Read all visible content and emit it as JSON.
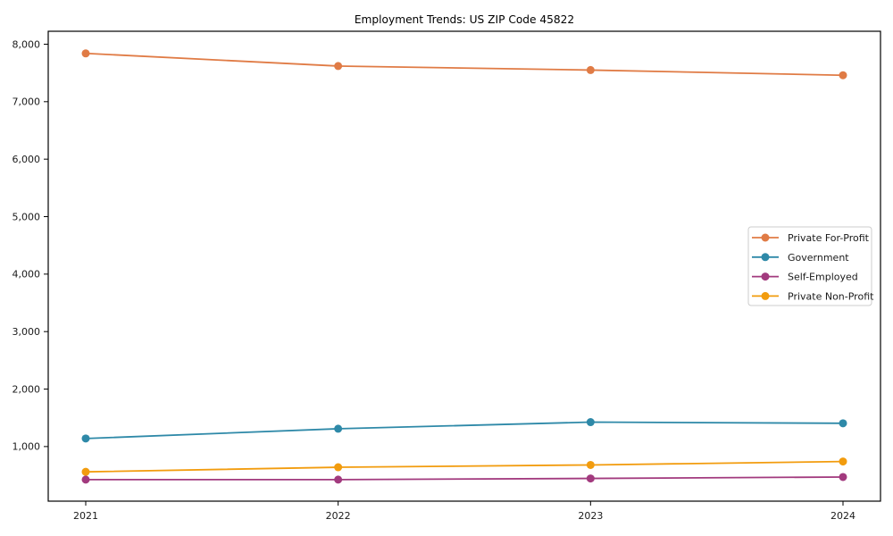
{
  "figure": {
    "background_color": "#ffffff",
    "spine_color": "#000000",
    "legend_border_color": "#cccccc"
  },
  "chart_data": {
    "type": "line",
    "title": "Employment Trends: US ZIP Code 45822",
    "xlabel": "",
    "ylabel": "",
    "grid": false,
    "legend_position": "center right",
    "x": [
      2021,
      2022,
      2023,
      2024
    ],
    "x_tick_labels": [
      "2021",
      "2022",
      "2023",
      "2024"
    ],
    "y_ticks": [
      1000,
      2000,
      3000,
      4000,
      5000,
      6000,
      7000,
      8000
    ],
    "y_tick_labels": [
      "1,000",
      "2,000",
      "3,000",
      "4,000",
      "5,000",
      "6,000",
      "7,000",
      "8,000"
    ],
    "ylim": [
      50,
      8225
    ],
    "marker": "circle",
    "series": [
      {
        "name": "Private For-Profit",
        "color": "#E07B45",
        "values": [
          7840,
          7620,
          7550,
          7460
        ]
      },
      {
        "name": "Government",
        "color": "#2E89A8",
        "values": [
          1140,
          1310,
          1425,
          1405
        ]
      },
      {
        "name": "Self-Employed",
        "color": "#A23A7E",
        "values": [
          425,
          425,
          445,
          470
        ]
      },
      {
        "name": "Private Non-Profit",
        "color": "#F29C0E",
        "values": [
          560,
          640,
          680,
          740
        ]
      }
    ]
  }
}
